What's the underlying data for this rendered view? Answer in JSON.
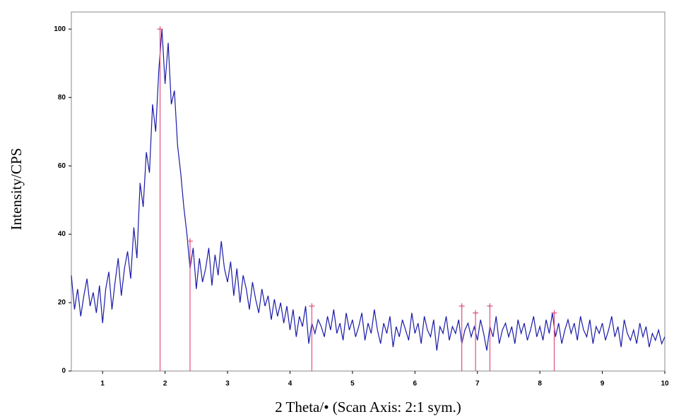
{
  "chart_data": {
    "type": "line",
    "xlabel": "2 Theta/• (Scan Axis: 2:1 sym.)",
    "ylabel": "Intensity/CPS",
    "xlim": [
      0.5,
      10
    ],
    "ylim": [
      0,
      105
    ],
    "xticks": [
      1,
      2,
      3,
      4,
      5,
      6,
      7,
      8,
      9,
      10
    ],
    "yticks": [
      0,
      20,
      40,
      60,
      80,
      100
    ],
    "color": "#1a1aa8",
    "x": [
      0.5,
      0.55,
      0.6,
      0.65,
      0.7,
      0.75,
      0.8,
      0.85,
      0.9,
      0.95,
      1.0,
      1.05,
      1.1,
      1.15,
      1.2,
      1.25,
      1.3,
      1.35,
      1.4,
      1.45,
      1.5,
      1.55,
      1.6,
      1.65,
      1.7,
      1.75,
      1.8,
      1.85,
      1.9,
      1.95,
      2.0,
      2.05,
      2.1,
      2.15,
      2.2,
      2.25,
      2.3,
      2.35,
      2.4,
      2.45,
      2.5,
      2.55,
      2.6,
      2.65,
      2.7,
      2.75,
      2.8,
      2.85,
      2.9,
      2.95,
      3.0,
      3.05,
      3.1,
      3.15,
      3.2,
      3.25,
      3.3,
      3.35,
      3.4,
      3.45,
      3.5,
      3.55,
      3.6,
      3.65,
      3.7,
      3.75,
      3.8,
      3.85,
      3.9,
      3.95,
      4.0,
      4.05,
      4.1,
      4.15,
      4.2,
      4.25,
      4.3,
      4.35,
      4.4,
      4.45,
      4.5,
      4.55,
      4.6,
      4.65,
      4.7,
      4.75,
      4.8,
      4.85,
      4.9,
      4.95,
      5.0,
      5.05,
      5.1,
      5.15,
      5.2,
      5.25,
      5.3,
      5.35,
      5.4,
      5.45,
      5.5,
      5.55,
      5.6,
      5.65,
      5.7,
      5.75,
      5.8,
      5.85,
      5.9,
      5.95,
      6.0,
      6.05,
      6.1,
      6.15,
      6.2,
      6.25,
      6.3,
      6.35,
      6.4,
      6.45,
      6.5,
      6.55,
      6.6,
      6.65,
      6.7,
      6.75,
      6.8,
      6.85,
      6.9,
      6.95,
      7.0,
      7.05,
      7.1,
      7.15,
      7.2,
      7.25,
      7.3,
      7.35,
      7.4,
      7.45,
      7.5,
      7.55,
      7.6,
      7.65,
      7.7,
      7.75,
      7.8,
      7.85,
      7.9,
      7.95,
      8.0,
      8.05,
      8.1,
      8.15,
      8.2,
      8.25,
      8.3,
      8.35,
      8.4,
      8.45,
      8.5,
      8.55,
      8.6,
      8.65,
      8.7,
      8.75,
      8.8,
      8.85,
      8.9,
      8.95,
      9.0,
      9.05,
      9.1,
      9.15,
      9.2,
      9.25,
      9.3,
      9.35,
      9.4,
      9.45,
      9.5,
      9.55,
      9.6,
      9.65,
      9.7,
      9.75,
      9.8,
      9.85,
      9.9,
      9.95,
      10.0
    ],
    "values": [
      28,
      18,
      24,
      16,
      22,
      27,
      19,
      23,
      17,
      25,
      14,
      24,
      29,
      18,
      26,
      33,
      22,
      30,
      35,
      27,
      42,
      33,
      55,
      48,
      64,
      58,
      78,
      70,
      88,
      100,
      84,
      96,
      78,
      82,
      66,
      58,
      48,
      40,
      30,
      36,
      24,
      33,
      26,
      30,
      36,
      25,
      34,
      28,
      38,
      30,
      26,
      32,
      22,
      30,
      20,
      28,
      24,
      18,
      26,
      21,
      17,
      24,
      19,
      22,
      15,
      21,
      16,
      20,
      14,
      19,
      12,
      18,
      10,
      16,
      13,
      19,
      8,
      14,
      11,
      15,
      13,
      10,
      16,
      12,
      18,
      11,
      14,
      9,
      17,
      12,
      15,
      10,
      13,
      17,
      9,
      14,
      11,
      18,
      12,
      8,
      14,
      11,
      16,
      7,
      13,
      10,
      15,
      12,
      9,
      17,
      11,
      14,
      8,
      16,
      12,
      10,
      15,
      6,
      13,
      11,
      16,
      9,
      13,
      11,
      15,
      8,
      12,
      14,
      10,
      13,
      9,
      15,
      11,
      6,
      13,
      10,
      16,
      8,
      12,
      14,
      10,
      13,
      8,
      15,
      11,
      14,
      9,
      12,
      16,
      10,
      13,
      9,
      15,
      11,
      17,
      10,
      14,
      8,
      12,
      15,
      11,
      14,
      9,
      16,
      12,
      10,
      15,
      8,
      13,
      11,
      14,
      9,
      12,
      16,
      10,
      13,
      7,
      15,
      11,
      9,
      12,
      8,
      14,
      10,
      13,
      7,
      11,
      9,
      12,
      8,
      10
    ],
    "peaks": {
      "color": "#e0507a",
      "x": [
        1.92,
        2.4,
        4.35,
        6.75,
        6.97,
        7.2,
        8.23
      ],
      "values": [
        100,
        38,
        19,
        19,
        17,
        19,
        17
      ]
    }
  }
}
